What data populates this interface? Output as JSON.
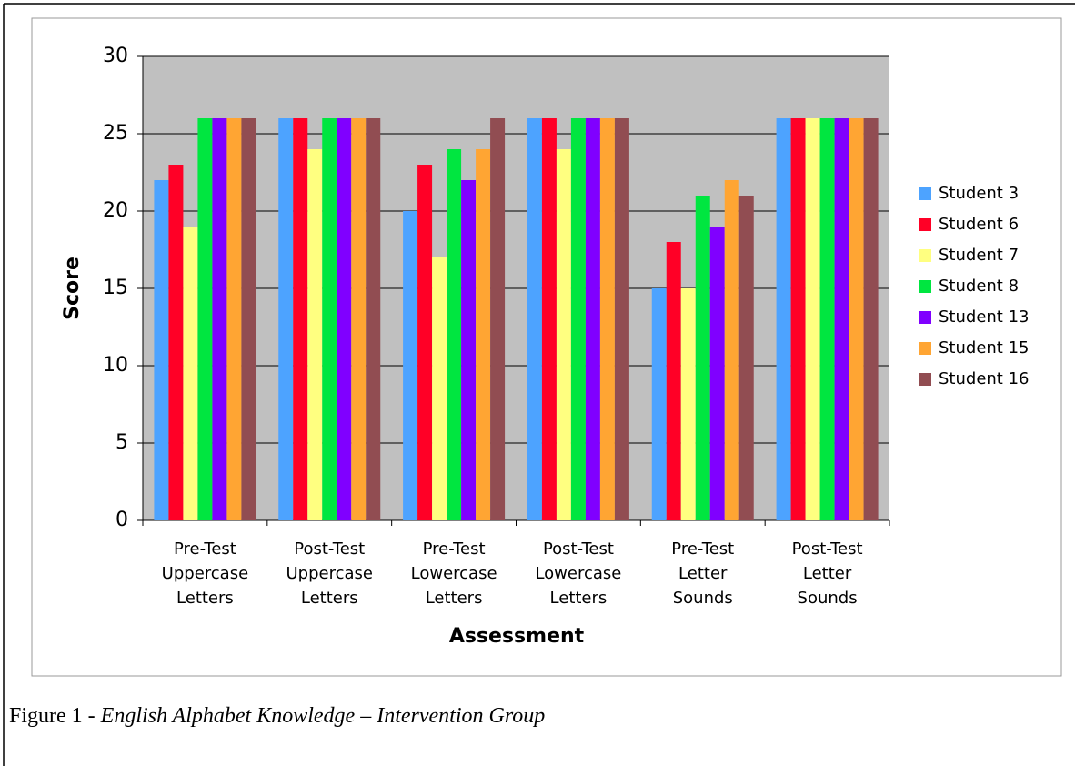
{
  "chart_data": {
    "type": "bar",
    "xlabel": "Assessment",
    "ylabel": "Score",
    "categories": [
      "Pre-Test Uppercase Letters",
      "Post-Test Uppercase Letters",
      "Pre-Test Lowercase Letters",
      "Post-Test Lowercase Letters",
      "Pre-Test Letter Sounds",
      "Post-Test Letter Sounds"
    ],
    "series": [
      {
        "name": "Student 3",
        "color": "#4da3ff",
        "values": [
          22,
          26,
          20,
          26,
          15,
          26
        ]
      },
      {
        "name": "Student 6",
        "color": "#ff0026",
        "values": [
          23,
          26,
          23,
          26,
          18,
          26
        ]
      },
      {
        "name": "Student 7",
        "color": "#ffff80",
        "values": [
          19,
          24,
          17,
          24,
          15,
          26
        ]
      },
      {
        "name": "Student 8",
        "color": "#00e640",
        "values": [
          26,
          26,
          24,
          26,
          21,
          26
        ]
      },
      {
        "name": "Student 13",
        "color": "#8000ff",
        "values": [
          26,
          26,
          22,
          26,
          19,
          26
        ]
      },
      {
        "name": "Student 15",
        "color": "#ffa533",
        "values": [
          26,
          26,
          24,
          26,
          22,
          26
        ]
      },
      {
        "name": "Student 16",
        "color": "#914d52",
        "values": [
          26,
          26,
          26,
          26,
          21,
          26
        ]
      }
    ],
    "ylim": [
      0,
      30
    ],
    "yticks": [
      0,
      5,
      10,
      15,
      20,
      25,
      30
    ],
    "grid": true,
    "legend": "right"
  },
  "caption": {
    "prefix": "Figure 1 -",
    "title": "English Alphabet Knowledge – Intervention Group"
  }
}
